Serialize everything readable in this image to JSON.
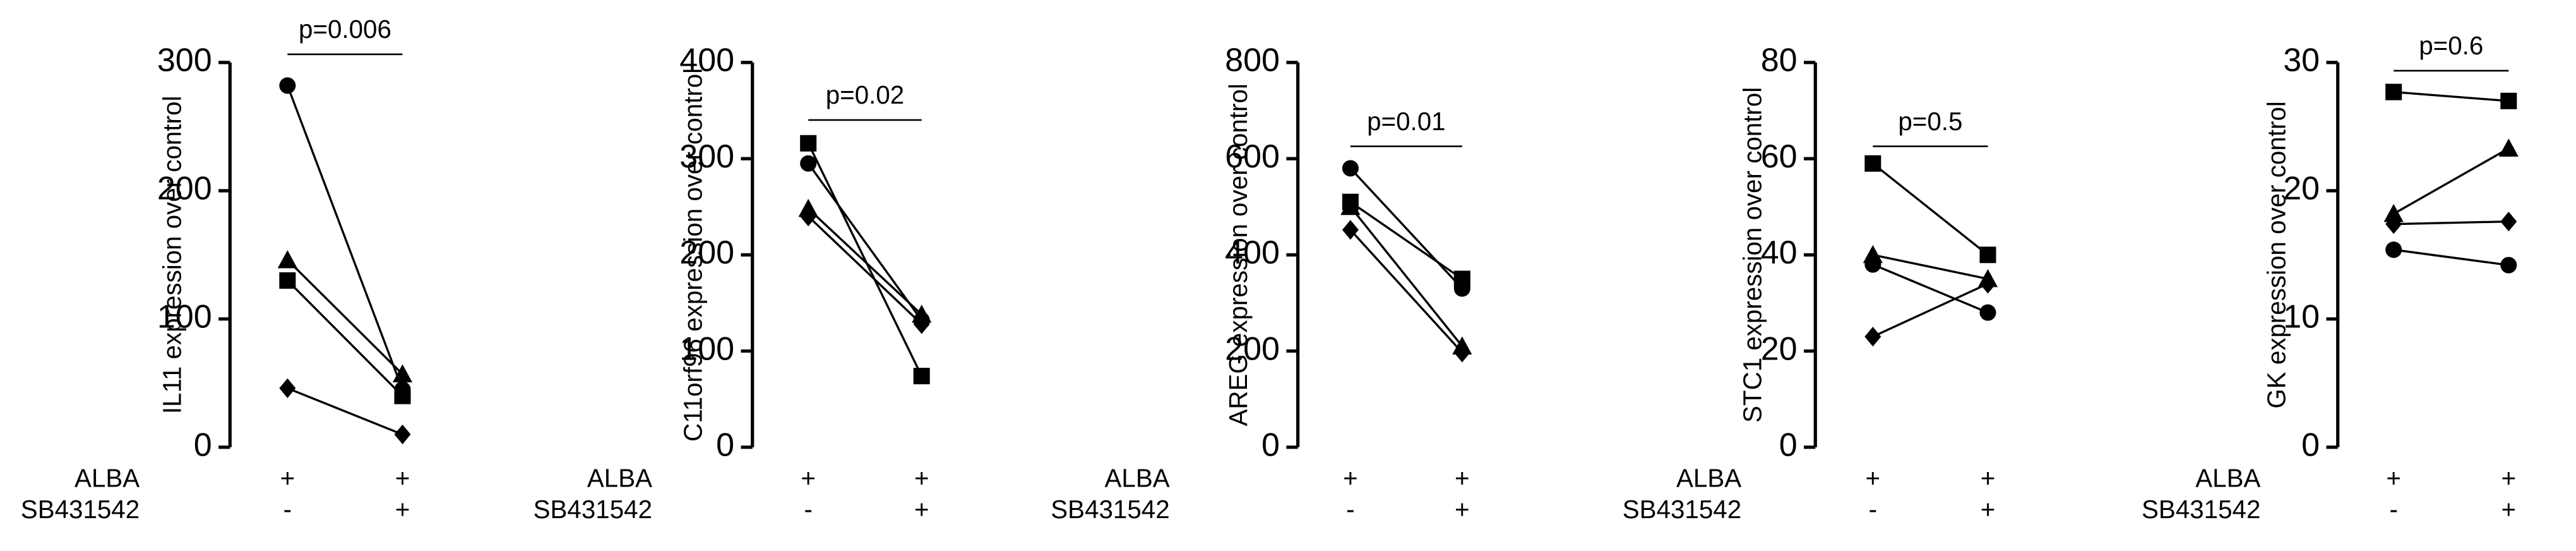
{
  "chart_data": [
    {
      "type": "paired-line",
      "y_label": "IL11 expression over control",
      "annotation": "p=0.006",
      "ylim": [
        0,
        300
      ],
      "yticks": [
        0,
        100,
        200,
        300
      ],
      "color": "#000000",
      "conditions": [
        {
          "name": "ALBA",
          "values": [
            "+",
            "+"
          ]
        },
        {
          "name": "SB431542",
          "values": [
            "-",
            "+"
          ]
        }
      ],
      "series": [
        {
          "marker": "circle",
          "values": [
            282,
            45
          ]
        },
        {
          "marker": "triangle",
          "values": [
            146,
            57
          ]
        },
        {
          "marker": "square",
          "values": [
            130,
            40
          ]
        },
        {
          "marker": "diamond",
          "values": [
            46,
            10
          ]
        }
      ]
    },
    {
      "type": "paired-line",
      "y_label": "C11orf96  expression over control",
      "annotation": "p=0.02",
      "ylim": [
        0,
        400
      ],
      "yticks": [
        0,
        100,
        200,
        300,
        400
      ],
      "color": "#000000",
      "conditions": [
        {
          "name": "ALBA",
          "values": [
            "+",
            "+"
          ]
        },
        {
          "name": "SB431542",
          "values": [
            "-",
            "+"
          ]
        }
      ],
      "series": [
        {
          "marker": "square",
          "values": [
            316,
            74
          ]
        },
        {
          "marker": "circle",
          "values": [
            295,
            132
          ]
        },
        {
          "marker": "triangle",
          "values": [
            248,
            138
          ]
        },
        {
          "marker": "diamond",
          "values": [
            240,
            128
          ]
        }
      ]
    },
    {
      "type": "paired-line",
      "y_label": "AREG expression over control",
      "annotation": "p=0.01",
      "ylim": [
        0,
        800
      ],
      "yticks": [
        0,
        200,
        400,
        600,
        800
      ],
      "color": "#000000",
      "conditions": [
        {
          "name": "ALBA",
          "values": [
            "+",
            "+"
          ]
        },
        {
          "name": "SB431542",
          "values": [
            "-",
            "+"
          ]
        }
      ],
      "series": [
        {
          "marker": "circle",
          "values": [
            580,
            330
          ]
        },
        {
          "marker": "square",
          "values": [
            510,
            350
          ]
        },
        {
          "marker": "triangle",
          "values": [
            500,
            210
          ]
        },
        {
          "marker": "diamond",
          "values": [
            452,
            197
          ]
        }
      ]
    },
    {
      "type": "paired-line",
      "y_label": "STC1 expression over control",
      "annotation": "p=0.5",
      "ylim": [
        0,
        80
      ],
      "yticks": [
        0,
        20,
        40,
        60,
        80
      ],
      "color": "#000000",
      "conditions": [
        {
          "name": "ALBA",
          "values": [
            "+",
            "+"
          ]
        },
        {
          "name": "SB431542",
          "values": [
            "-",
            "+"
          ]
        }
      ],
      "series": [
        {
          "marker": "square",
          "values": [
            59,
            40
          ]
        },
        {
          "marker": "triangle",
          "values": [
            40,
            35
          ]
        },
        {
          "marker": "circle",
          "values": [
            38,
            28
          ]
        },
        {
          "marker": "diamond",
          "values": [
            23,
            34
          ]
        }
      ]
    },
    {
      "type": "paired-line",
      "y_label": "GK expression over control",
      "annotation": "p=0.6",
      "ylim": [
        0,
        30
      ],
      "yticks": [
        0,
        10,
        20,
        30
      ],
      "color": "#000000",
      "conditions": [
        {
          "name": "ALBA",
          "values": [
            "+",
            "+"
          ]
        },
        {
          "name": "SB431542",
          "values": [
            "-",
            "+"
          ]
        }
      ],
      "series": [
        {
          "marker": "square",
          "values": [
            27.7,
            27
          ]
        },
        {
          "marker": "triangle",
          "values": [
            18.2,
            23.3
          ]
        },
        {
          "marker": "diamond",
          "values": [
            17.4,
            17.6
          ]
        },
        {
          "marker": "circle",
          "values": [
            15.4,
            14.2
          ]
        }
      ]
    }
  ]
}
